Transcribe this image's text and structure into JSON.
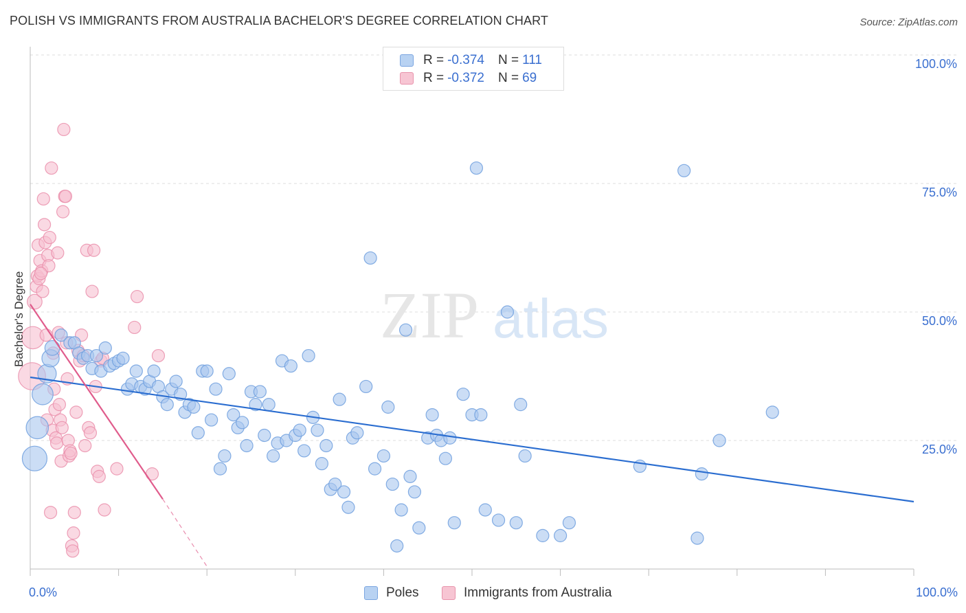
{
  "title": "POLISH VS IMMIGRANTS FROM AUSTRALIA BACHELOR'S DEGREE CORRELATION CHART",
  "source": "Source: ZipAtlas.com",
  "watermark": {
    "zip": "ZIP",
    "atlas": "atlas"
  },
  "legend_top": {
    "rows": [
      {
        "r_label": "R = ",
        "r_value": "-0.374",
        "n_label": "N = ",
        "n_value": "111"
      },
      {
        "r_label": "R = ",
        "r_value": "-0.372",
        "n_label": "N = ",
        "n_value": "69"
      }
    ]
  },
  "legend_bottom": [
    "Poles",
    "Immigrants from Australia"
  ],
  "axis": {
    "x_min_label": "0.0%",
    "x_max_label": "100.0%",
    "y_label": "Bachelor's Degree",
    "y_ticks": [
      "100.0%",
      "75.0%",
      "50.0%",
      "25.0%"
    ]
  },
  "colors": {
    "blue_fill": "#a8c6ee",
    "blue_stroke": "#6f9fde",
    "blue_line": "#2a6dd0",
    "pink_fill": "#f6bfd0",
    "pink_stroke": "#ea8fab",
    "pink_line": "#e05c8c",
    "grid": "#dddddd"
  },
  "chart_data": {
    "type": "scatter",
    "xlim": [
      0,
      100
    ],
    "ylim": [
      0,
      100
    ],
    "x_unit": "%",
    "y_unit": "%",
    "grid": true,
    "series": [
      {
        "name": "Poles",
        "points": [
          [
            0.5,
            21.5,
            2.0
          ],
          [
            0.8,
            27.5,
            1.8
          ],
          [
            1.4,
            34,
            1.7
          ],
          [
            1.9,
            38,
            1.5
          ],
          [
            2.3,
            41,
            1.4
          ],
          [
            2.5,
            43,
            1.2
          ],
          [
            3.5,
            45.5,
            1.0
          ],
          [
            4.5,
            44,
            1.0
          ],
          [
            5,
            44,
            1.0
          ],
          [
            5.5,
            42,
            1.0
          ],
          [
            6,
            41,
            1.0
          ],
          [
            6.5,
            41.5,
            1.0
          ],
          [
            7,
            39,
            1.0
          ],
          [
            7.5,
            41.5,
            1.0
          ],
          [
            8,
            38.5,
            1.0
          ],
          [
            8.5,
            43,
            1.0
          ],
          [
            9,
            39.5,
            1.0
          ],
          [
            9.5,
            40,
            1.0
          ],
          [
            10,
            40.5,
            1.0
          ],
          [
            10.5,
            41,
            1.0
          ],
          [
            11,
            35,
            1.0
          ],
          [
            11.5,
            36,
            1.0
          ],
          [
            12,
            38.5,
            1.0
          ],
          [
            12.5,
            35.5,
            1.0
          ],
          [
            13,
            35,
            1.0
          ],
          [
            13.5,
            36.5,
            1.0
          ],
          [
            14,
            38.5,
            1.0
          ],
          [
            14.5,
            35.5,
            1.0
          ],
          [
            15,
            33.5,
            1.0
          ],
          [
            15.5,
            32,
            1.0
          ],
          [
            16,
            35,
            1.0
          ],
          [
            16.5,
            36.5,
            1.0
          ],
          [
            17,
            34,
            1.0
          ],
          [
            17.5,
            30.5,
            1.0
          ],
          [
            18,
            32,
            1.0
          ],
          [
            18.5,
            31.5,
            1.0
          ],
          [
            19,
            26.5,
            1.0
          ],
          [
            19.5,
            38.5,
            1.0
          ],
          [
            20,
            38.5,
            1.0
          ],
          [
            20.5,
            29,
            1.0
          ],
          [
            21,
            35,
            1.0
          ],
          [
            21.5,
            19.5,
            1.0
          ],
          [
            22,
            22,
            1.0
          ],
          [
            22.5,
            38,
            1.0
          ],
          [
            23,
            30,
            1.0
          ],
          [
            23.5,
            27.5,
            1.0
          ],
          [
            24,
            28.5,
            1.0
          ],
          [
            24.5,
            24,
            1.0
          ],
          [
            25,
            34.5,
            1.0
          ],
          [
            25.5,
            32,
            1.0
          ],
          [
            26,
            34.5,
            1.0
          ],
          [
            26.5,
            26,
            1.0
          ],
          [
            27,
            32,
            1.0
          ],
          [
            27.5,
            22,
            1.0
          ],
          [
            28,
            24.5,
            1.0
          ],
          [
            28.5,
            40.5,
            1.0
          ],
          [
            29,
            25,
            1.0
          ],
          [
            29.5,
            39.5,
            1.0
          ],
          [
            30,
            26,
            1.0
          ],
          [
            30.5,
            27,
            1.0
          ],
          [
            31,
            23,
            1.0
          ],
          [
            31.5,
            41.5,
            1.0
          ],
          [
            32,
            29.5,
            1.0
          ],
          [
            32.5,
            27,
            1.0
          ],
          [
            33,
            20.5,
            1.0
          ],
          [
            33.5,
            24,
            1.0
          ],
          [
            34,
            15.5,
            1.0
          ],
          [
            34.5,
            16.5,
            1.0
          ],
          [
            35,
            33,
            1.0
          ],
          [
            35.5,
            15,
            1.0
          ],
          [
            36,
            12,
            1.0
          ],
          [
            36.5,
            25.5,
            1.0
          ],
          [
            37,
            26.5,
            1.0
          ],
          [
            38,
            35.5,
            1.0
          ],
          [
            38.5,
            60.5,
            1.0
          ],
          [
            39,
            19.5,
            1.0
          ],
          [
            40,
            22,
            1.0
          ],
          [
            40.5,
            31.5,
            1.0
          ],
          [
            41,
            16.5,
            1.0
          ],
          [
            41.5,
            4.5,
            1.0
          ],
          [
            42,
            11.5,
            1.0
          ],
          [
            42.5,
            46.5,
            1.0
          ],
          [
            43,
            18,
            1.0
          ],
          [
            43.5,
            15,
            1.0
          ],
          [
            44,
            8,
            1.0
          ],
          [
            45,
            25.5,
            1.0
          ],
          [
            45.5,
            30,
            1.0
          ],
          [
            46,
            26,
            1.0
          ],
          [
            46.5,
            25,
            1.0
          ],
          [
            47,
            21.5,
            1.0
          ],
          [
            47.5,
            25.5,
            1.0
          ],
          [
            48,
            9,
            1.0
          ],
          [
            49,
            34,
            1.0
          ],
          [
            50,
            30,
            1.0
          ],
          [
            50.5,
            78,
            1.0
          ],
          [
            51,
            30,
            1.0
          ],
          [
            51.5,
            11.5,
            1.0
          ],
          [
            53,
            9.5,
            1.0
          ],
          [
            54,
            50,
            1.0
          ],
          [
            55,
            9,
            1.0
          ],
          [
            55.5,
            32,
            1.0
          ],
          [
            56,
            22,
            1.0
          ],
          [
            58,
            6.5,
            1.0
          ],
          [
            60,
            6.5,
            1.0
          ],
          [
            61,
            9,
            1.0
          ],
          [
            69,
            20,
            1.0
          ],
          [
            74,
            77.5,
            1.0
          ],
          [
            75.5,
            6,
            1.0
          ],
          [
            76,
            18.5,
            1.0
          ],
          [
            78,
            25,
            1.0
          ],
          [
            84,
            30.5,
            1.0
          ]
        ],
        "trend": {
          "x": [
            0,
            100
          ],
          "y": [
            37.3,
            13.1
          ],
          "style": "solid"
        }
      },
      {
        "name": "Immigrants from Australia",
        "points": [
          [
            0.2,
            37.5,
            2.2
          ],
          [
            0.3,
            45,
            1.8
          ],
          [
            0.5,
            52,
            1.2
          ],
          [
            0.7,
            55,
            1.0
          ],
          [
            0.8,
            57,
            1.0
          ],
          [
            0.9,
            63,
            1.0
          ],
          [
            1,
            56.5,
            1.0
          ],
          [
            1.1,
            60,
            1.0
          ],
          [
            1.3,
            58,
            1.0
          ],
          [
            1.4,
            54,
            1.0
          ],
          [
            1.5,
            72,
            1.0
          ],
          [
            1.6,
            67,
            1.0
          ],
          [
            1.7,
            63.5,
            1.0
          ],
          [
            1.8,
            45.5,
            1.0
          ],
          [
            1.9,
            29,
            1.0
          ],
          [
            2,
            61,
            1.0
          ],
          [
            2.1,
            59,
            1.0
          ],
          [
            2.2,
            64.5,
            1.0
          ],
          [
            2.3,
            11,
            1.0
          ],
          [
            2.4,
            78,
            1.0
          ],
          [
            2.5,
            27,
            1.0
          ],
          [
            2.6,
            42,
            1.0
          ],
          [
            2.7,
            35,
            1.0
          ],
          [
            2.8,
            31,
            1.0
          ],
          [
            2.9,
            25.5,
            1.0
          ],
          [
            3,
            24.5,
            1.0
          ],
          [
            3.1,
            61.5,
            1.0
          ],
          [
            3.2,
            46,
            1.0
          ],
          [
            3.3,
            32,
            1.0
          ],
          [
            3.4,
            29,
            1.0
          ],
          [
            3.5,
            21,
            1.0
          ],
          [
            3.6,
            27.5,
            1.0
          ],
          [
            3.7,
            69.5,
            1.0
          ],
          [
            3.8,
            85.5,
            1.0
          ],
          [
            3.9,
            72.5,
            1.0
          ],
          [
            4,
            72.5,
            1.0
          ],
          [
            4.1,
            44,
            1.0
          ],
          [
            4.2,
            37,
            1.0
          ],
          [
            4.3,
            25,
            1.0
          ],
          [
            4.4,
            22,
            1.0
          ],
          [
            4.5,
            23,
            1.0
          ],
          [
            4.6,
            22.5,
            1.0
          ],
          [
            4.7,
            4.5,
            1.0
          ],
          [
            4.8,
            3.5,
            1.0
          ],
          [
            4.9,
            7,
            1.0
          ],
          [
            5,
            11,
            1.0
          ],
          [
            5.2,
            30.5,
            1.0
          ],
          [
            5.4,
            42.5,
            1.0
          ],
          [
            5.6,
            40.5,
            1.0
          ],
          [
            5.8,
            45.5,
            1.0
          ],
          [
            6,
            41.5,
            1.0
          ],
          [
            6.2,
            24,
            1.0
          ],
          [
            6.4,
            62,
            1.0
          ],
          [
            6.6,
            27.5,
            1.0
          ],
          [
            6.8,
            26.5,
            1.0
          ],
          [
            7,
            54,
            1.0
          ],
          [
            7.2,
            62,
            1.0
          ],
          [
            7.4,
            35.5,
            1.0
          ],
          [
            7.6,
            19,
            1.0
          ],
          [
            7.8,
            18,
            1.0
          ],
          [
            8,
            40.5,
            1.0
          ],
          [
            8.2,
            41,
            1.0
          ],
          [
            8.4,
            11.5,
            1.0
          ],
          [
            9.8,
            19.5,
            1.0
          ],
          [
            11.8,
            47,
            1.0
          ],
          [
            12.1,
            53,
            1.0
          ],
          [
            13.8,
            18.5,
            1.0
          ],
          [
            14.5,
            41.5,
            1.0
          ],
          [
            1.2,
            57.5,
            1.0
          ]
        ],
        "trend": {
          "x": [
            0,
            15,
            20
          ],
          "y": [
            51.5,
            13.6,
            0.5
          ],
          "style": "solid-then-dashed"
        }
      }
    ]
  }
}
